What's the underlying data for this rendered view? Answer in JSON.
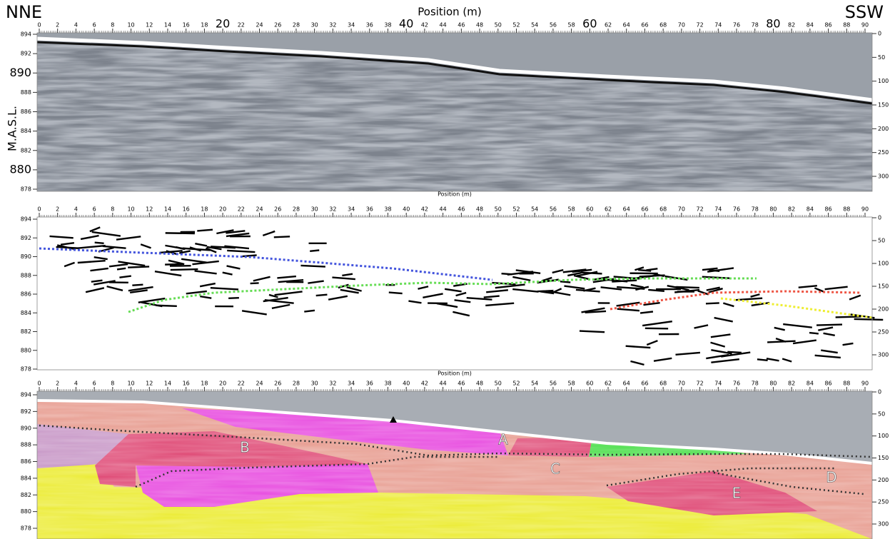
{
  "header": {
    "left": "NNE",
    "right": "SSW",
    "title": "Position (m)"
  },
  "y_axis_label": "M.A.S.L.",
  "panel_axis_label": "Position (m)",
  "position_ticks": [
    0,
    2,
    4,
    6,
    8,
    10,
    12,
    14,
    16,
    18,
    20,
    22,
    24,
    26,
    28,
    30,
    32,
    34,
    36,
    38,
    40,
    42,
    44,
    46,
    48,
    50,
    52,
    54,
    56,
    58,
    60,
    62,
    64,
    66,
    68,
    70,
    72,
    74,
    76,
    78,
    80,
    82,
    84,
    86,
    88,
    90
  ],
  "major_position_labels": [
    20,
    40,
    60,
    80
  ],
  "elevation_ticks": [
    894,
    892,
    890,
    888,
    886,
    884,
    882,
    880,
    878
  ],
  "major_elevation_labels": [
    890,
    880
  ],
  "depth_ticks": [
    0,
    50,
    100,
    150,
    200,
    250,
    300
  ],
  "zones": [
    {
      "label": "A"
    },
    {
      "label": "B"
    },
    {
      "label": "C"
    },
    {
      "label": "D"
    },
    {
      "label": "E"
    }
  ]
}
